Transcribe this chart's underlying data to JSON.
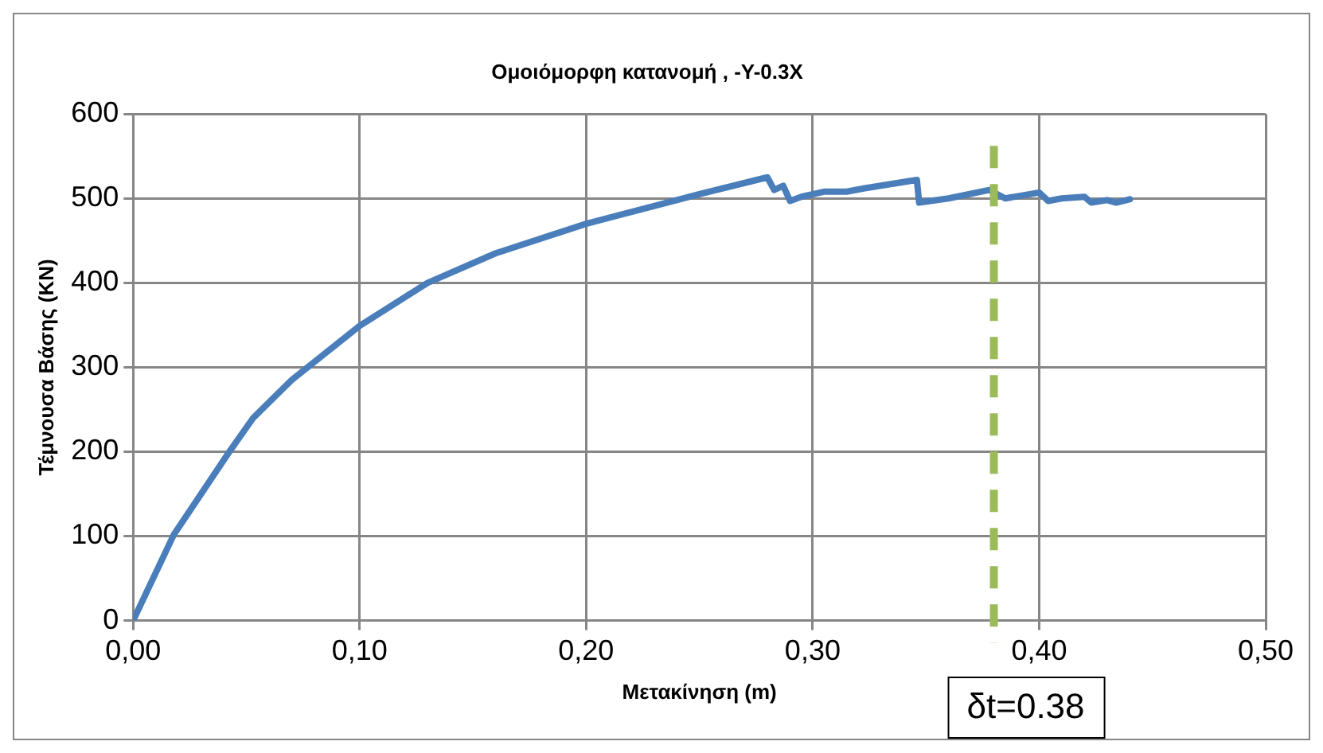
{
  "chart_data": {
    "type": "line",
    "title": "Ομοιόμορφη κατανομή , -Y-0.3X",
    "xlabel": "Μετακίνηση (m)",
    "ylabel": "Τέμνουσα Βάσης (KN)",
    "x": [
      0,
      0.018,
      0.043,
      0.053,
      0.07,
      0.1,
      0.13,
      0.16,
      0.2,
      0.25,
      0.28,
      0.283,
      0.287,
      0.29,
      0.295,
      0.305,
      0.315,
      0.323,
      0.346,
      0.347,
      0.36,
      0.378,
      0.385,
      0.4,
      0.404,
      0.41,
      0.42,
      0.423,
      0.43,
      0.434,
      0.44
    ],
    "series": [
      {
        "color": "#4a7ebb",
        "values": [
          0,
          102,
          202,
          240,
          285,
          349,
          400,
          435,
          470,
          505,
          525,
          510,
          515,
          497,
          502,
          508,
          508,
          512,
          522,
          495,
          500,
          510,
          500,
          507,
          497,
          500,
          502,
          495,
          498,
          495,
          499
        ]
      }
    ],
    "xlim": [
      0,
      0.5
    ],
    "xticks": [
      {
        "value": 0,
        "label": "0,00"
      },
      {
        "value": 0.1,
        "label": "0,10"
      },
      {
        "value": 0.2,
        "label": "0,20"
      },
      {
        "value": 0.3,
        "label": "0,30"
      },
      {
        "value": 0.4,
        "label": "0,40"
      },
      {
        "value": 0.5,
        "label": "0,50"
      }
    ],
    "ylim": [
      0,
      600
    ],
    "yticks": [
      0,
      100,
      200,
      300,
      400,
      500,
      600
    ],
    "grid": true,
    "legend": false,
    "marker": "none",
    "line_style": "solid",
    "ref_lines": [
      {
        "axis": "x",
        "value": 0.38,
        "label": "δt=0.38",
        "color": "#9bbb59",
        "line_style": "dashed"
      }
    ]
  }
}
